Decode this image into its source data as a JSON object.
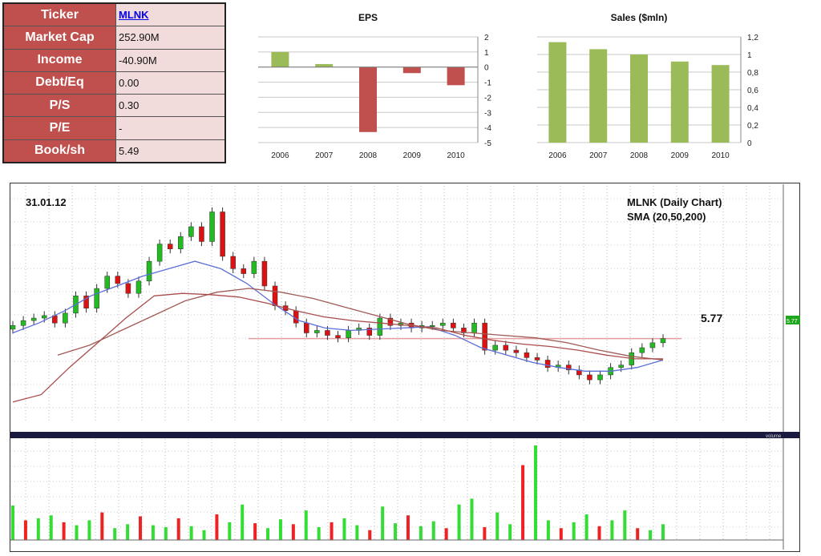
{
  "fundamentals": [
    {
      "label": "Ticker",
      "value": "MLNK",
      "link": true
    },
    {
      "label": "Market Cap",
      "value": "252.90M"
    },
    {
      "label": "Income",
      "value": "-40.90M"
    },
    {
      "label": "Debt/Eq",
      "value": "0.00"
    },
    {
      "label": "P/S",
      "value": "0.30"
    },
    {
      "label": "P/E",
      "value": "-"
    },
    {
      "label": "Book/sh",
      "value": "5.49"
    }
  ],
  "colors": {
    "green_bar": "#9bbb59",
    "red_bar": "#c0504d",
    "sma20": "#5b6fd6",
    "sma50": "#a05a55",
    "sma200": "#aa4c4c",
    "candle_up": "#22bb22",
    "candle_down": "#dd1111",
    "resistance": "#e4a0a0"
  },
  "chart_data": [
    {
      "type": "bar",
      "title": "EPS",
      "categories": [
        "2006",
        "2007",
        "2008",
        "2009",
        "2010"
      ],
      "values": [
        1.0,
        0.2,
        -4.3,
        -0.4,
        -1.2
      ],
      "ylim": [
        -5,
        2
      ],
      "yticks": [
        "2",
        "1",
        "0",
        "-1",
        "-2",
        "-3",
        "-4",
        "-5"
      ],
      "grid": true
    },
    {
      "type": "bar",
      "title": "Sales ($mln)",
      "categories": [
        "2006",
        "2007",
        "2008",
        "2009",
        "2010"
      ],
      "values": [
        1.14,
        1.06,
        1.0,
        0.92,
        0.88
      ],
      "ylim": [
        0,
        1.2
      ],
      "yticks": [
        "1,2",
        "1",
        "0,8",
        "0,6",
        "0,4",
        "0,2",
        "0"
      ],
      "grid": true
    },
    {
      "type": "candlestick",
      "date_label": "31.01.12",
      "title": "MLNK (Daily Chart)",
      "subtitle": "SMA (20,50,200)",
      "price_label": "5.77",
      "price_badge": "5.77",
      "volume_header": "volume",
      "price_range": [
        3,
        11.5
      ],
      "resistance_level": 5.77,
      "close_series": [
        6.3,
        6.5,
        6.6,
        6.7,
        6.4,
        6.8,
        7.5,
        7.0,
        7.8,
        8.3,
        8.0,
        7.6,
        8.1,
        8.9,
        9.6,
        9.4,
        9.9,
        10.3,
        9.7,
        10.9,
        9.1,
        8.6,
        8.4,
        8.9,
        7.9,
        7.1,
        6.9,
        6.4,
        6.0,
        6.1,
        5.9,
        5.8,
        6.1,
        6.2,
        5.9,
        6.6,
        6.3,
        6.4,
        6.2,
        6.3,
        6.3,
        6.4,
        6.2,
        6.0,
        6.4,
        5.3,
        5.5,
        5.3,
        5.2,
        5.0,
        4.9,
        4.6,
        4.7,
        4.5,
        4.3,
        4.1,
        4.3,
        4.6,
        4.7,
        5.2,
        5.4,
        5.6,
        5.77
      ],
      "sma20": [
        6.0,
        6.4,
        6.9,
        7.5,
        7.9,
        8.3,
        8.6,
        8.9,
        8.6,
        8.0,
        7.2,
        6.5,
        6.2,
        6.1,
        6.15,
        6.2,
        6.25,
        5.9,
        5.4,
        5.1,
        4.8,
        4.6,
        4.45,
        4.45,
        4.6,
        4.9
      ],
      "sma50": [
        5.1,
        5.5,
        6.1,
        6.7,
        7.3,
        7.65,
        7.8,
        7.65,
        7.4,
        7.05,
        6.7,
        6.35,
        6.1,
        6.0,
        5.9,
        5.8,
        5.6,
        5.3,
        5.05,
        4.9
      ],
      "sma200": [
        3.2,
        3.5,
        4.6,
        5.6,
        6.6,
        7.5,
        7.6,
        7.55,
        7.45,
        7.2,
        6.9,
        6.65,
        6.5,
        6.4,
        6.3,
        6.2,
        5.9,
        5.7,
        5.55,
        5.45,
        5.3,
        5.1,
        4.95,
        4.95
      ],
      "volume_series": [
        3.5,
        2.0,
        2.2,
        2.5,
        1.8,
        1.5,
        2.0,
        2.8,
        1.2,
        1.6,
        2.4,
        1.5,
        1.3,
        2.2,
        1.4,
        1.0,
        2.6,
        1.8,
        3.6,
        1.7,
        1.2,
        2.1,
        1.6,
        3.0,
        1.3,
        1.8,
        2.2,
        1.5,
        1.0,
        3.4,
        1.7,
        2.5,
        1.4,
        1.9,
        1.2,
        3.6,
        4.2,
        1.3,
        2.8,
        1.6,
        7.6,
        9.6,
        2.0,
        1.2,
        1.8,
        2.6,
        1.4,
        2.0,
        3.0,
        1.2,
        1.0,
        1.6
      ]
    }
  ]
}
